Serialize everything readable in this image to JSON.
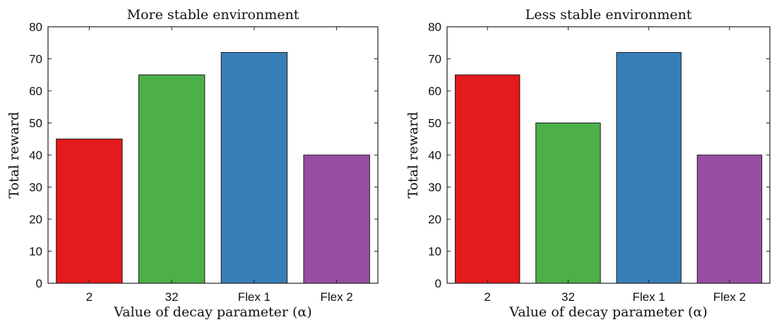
{
  "chart_data": [
    {
      "type": "bar",
      "title": "More stable environment",
      "xlabel": "Value of decay parameter (α)",
      "ylabel": "Total reward",
      "categories": [
        "2",
        "32",
        "Flex 1",
        "Flex 2"
      ],
      "values": [
        45,
        65,
        72,
        40
      ],
      "ylim": [
        0,
        80
      ],
      "yticks": [
        0,
        10,
        20,
        30,
        40,
        50,
        60,
        70,
        80
      ],
      "colors": [
        "#e41a1c",
        "#4daf4a",
        "#377eb8",
        "#984ea3"
      ],
      "grid": false,
      "legend": "none"
    },
    {
      "type": "bar",
      "title": "Less stable environment",
      "xlabel": "Value of decay parameter (α)",
      "ylabel": "Total reward",
      "categories": [
        "2",
        "32",
        "Flex 1",
        "Flex 2"
      ],
      "values": [
        65,
        50,
        72,
        40
      ],
      "ylim": [
        0,
        80
      ],
      "yticks": [
        0,
        10,
        20,
        30,
        40,
        50,
        60,
        70,
        80
      ],
      "colors": [
        "#e41a1c",
        "#4daf4a",
        "#377eb8",
        "#984ea3"
      ],
      "grid": false,
      "legend": "none"
    }
  ]
}
